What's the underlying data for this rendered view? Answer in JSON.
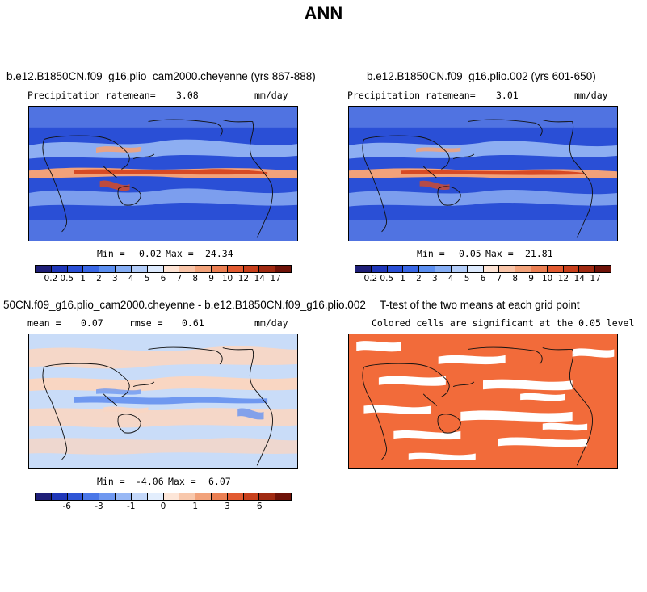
{
  "figure": {
    "title": "ANN"
  },
  "panels": [
    {
      "title": "b.e12.B1850CN.f09_g16.plio_cam2000.cheyenne (yrs 867-888)",
      "variable": "Precipitation rate",
      "mean_label": "mean=",
      "mean_value": "3.08",
      "units": "mm/day",
      "min_label": "Min =",
      "min_value": "0.02",
      "max_label": "Max =",
      "max_value": "24.34"
    },
    {
      "title": "b.e12.B1850CN.f09_g16.plio.002 (yrs 601-650)",
      "variable": "Precipitation rate",
      "mean_label": "mean=",
      "mean_value": "3.01",
      "units": "mm/day",
      "min_label": "Min =",
      "min_value": "0.05",
      "max_label": "Max =",
      "max_value": "21.81"
    },
    {
      "title": "50CN.f09_g16.plio_cam2000.cheyenne - b.e12.B1850CN.f09_g16.plio.002",
      "mean_label": "mean =",
      "mean_value": "0.07",
      "rmse_label": "rmse =",
      "rmse_value": "0.61",
      "units": "mm/day",
      "min_label": "Min =",
      "min_value": "-4.06",
      "max_label": "Max =",
      "max_value": "6.07"
    },
    {
      "title": "T-test of the two means at each grid point",
      "subtitle": "Colored cells are significant at the 0.05 level"
    }
  ],
  "colorbars": {
    "precip": {
      "colors": [
        "#1f1f78",
        "#1f37b9",
        "#2a4fd6",
        "#3a68e6",
        "#5c8ff0",
        "#86aef5",
        "#b3cdf9",
        "#ddeafd",
        "#fde3d4",
        "#f8c4a8",
        "#f2a27a",
        "#eb7f52",
        "#e25a30",
        "#c8401c",
        "#a02a12",
        "#6e1208"
      ],
      "labels": [
        "0.2",
        "0.5",
        "1",
        "2",
        "3",
        "4",
        "5",
        "6",
        "7",
        "8",
        "9",
        "10",
        "12",
        "14",
        "17"
      ]
    },
    "diff": {
      "colors": [
        "#1f1f78",
        "#1f37b9",
        "#2f55d6",
        "#4a77e8",
        "#6f98f0",
        "#98b8f5",
        "#c4d8fa",
        "#e3eefd",
        "#fde6d8",
        "#f8c8ac",
        "#f2a27a",
        "#eb7f52",
        "#e25a30",
        "#c8401c",
        "#a02a12",
        "#6e1208"
      ],
      "labels": [
        "-6",
        "-3",
        "-1",
        "0",
        "1",
        "3",
        "6"
      ]
    }
  },
  "palette": {
    "ocean_deep": "#2a4fd6",
    "ocean_mid": "#4a77e8",
    "band_light": "#98b8f5",
    "itcz": "#f2a27a",
    "itcz_core": "#d84a24",
    "diff_bg": "#c9dcf8",
    "diff_pos": "#f9d6c2",
    "diff_neg": "#6f98f0",
    "ttest_fill": "#f26b3a",
    "coast": "#111111"
  }
}
